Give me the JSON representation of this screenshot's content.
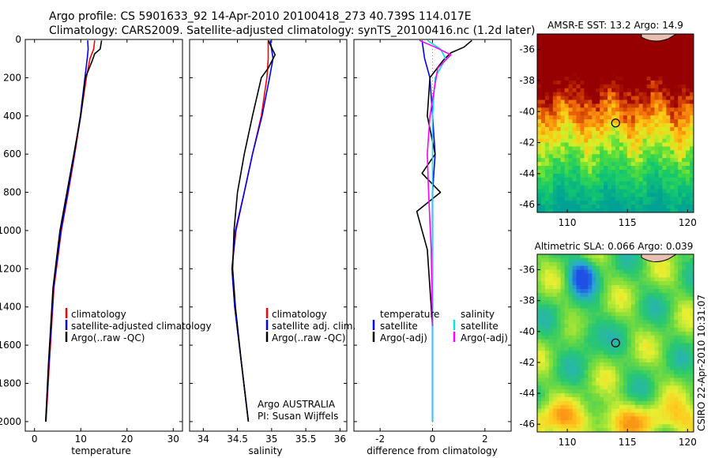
{
  "header": {
    "line1": "Argo profile: CS 5901633_92 14-Apr-2010 20100418_273 40.739S 114.017E",
    "line2": "Climatology: CARS2009. Satellite-adjusted climatology: synTS_20100416.nc (1.2d later)"
  },
  "footer_stamp": "CSIRO 22-Apr-2010 10:31:07",
  "colors": {
    "climatology": "#ff0000",
    "satellite": "#0000ff",
    "argo": "#000000",
    "satellite_diff_salinity": "#00e5e5",
    "argo_diff_salinity": "#ff00ff"
  },
  "chart_data": [
    {
      "type": "line",
      "name": "temperature-profile",
      "xlabel": "temperature",
      "ylabel": "",
      "xlim": [
        -2,
        32
      ],
      "ylim": [
        2050,
        0
      ],
      "xticks": [
        0,
        10,
        20,
        30
      ],
      "yticks": [
        0,
        200,
        400,
        600,
        800,
        1000,
        1200,
        1400,
        1600,
        1800,
        2000
      ],
      "legend": [
        "climatology",
        "satellite-adjusted climatology",
        "Argo(..raw -QC)"
      ],
      "series": [
        {
          "name": "climatology",
          "x": [
            13.0,
            12.8,
            12.0,
            11.2,
            10.0,
            8.7,
            7.3,
            5.8,
            4.2,
            3.2,
            2.5
          ],
          "y": [
            5,
            50,
            100,
            200,
            400,
            600,
            800,
            1000,
            1300,
            1700,
            2000
          ]
        },
        {
          "name": "satellite-adjusted climatology",
          "x": [
            11.5,
            11.6,
            11.4,
            10.9,
            9.9,
            8.6,
            7.2,
            5.7,
            4.1,
            3.1,
            2.4
          ],
          "y": [
            5,
            50,
            100,
            200,
            400,
            600,
            800,
            1000,
            1300,
            1700,
            2000
          ]
        },
        {
          "name": "Argo(..raw -QC)",
          "x": [
            14.5,
            14.2,
            13.0,
            12.5,
            11.0,
            10.0,
            8.5,
            7.0,
            5.5,
            4.0,
            3.0,
            2.4
          ],
          "y": [
            5,
            50,
            75,
            110,
            200,
            400,
            600,
            800,
            1000,
            1300,
            1700,
            2000
          ]
        }
      ]
    },
    {
      "type": "line",
      "name": "salinity-profile",
      "xlabel": "salinity",
      "ylabel": "",
      "xlim": [
        33.8,
        36.1
      ],
      "ylim": [
        2050,
        0
      ],
      "xticks": [
        34,
        34.5,
        35,
        35.5,
        36
      ],
      "legend": [
        "climatology",
        "satellite adj. clim.",
        "Argo(..raw -QC)"
      ],
      "annotation": [
        "Argo AUSTRALIA",
        "PI: Susan Wijffels"
      ],
      "series": [
        {
          "name": "climatology",
          "x": [
            34.95,
            34.95,
            34.94,
            34.93,
            34.85,
            34.72,
            34.6,
            34.48,
            34.42,
            34.46,
            34.56,
            34.66
          ],
          "y": [
            5,
            100,
            160,
            200,
            400,
            600,
            800,
            1000,
            1200,
            1400,
            1700,
            2000
          ]
        },
        {
          "name": "satellite adj. clim.",
          "x": [
            34.98,
            35.0,
            35.02,
            34.97,
            34.86,
            34.72,
            34.6,
            34.47,
            34.42,
            34.46,
            34.56,
            34.66
          ],
          "y": [
            5,
            50,
            100,
            200,
            400,
            600,
            800,
            1000,
            1200,
            1400,
            1700,
            2000
          ]
        },
        {
          "name": "Argo(..raw -QC)",
          "x": [
            34.95,
            35.05,
            34.95,
            34.85,
            34.72,
            34.6,
            34.5,
            34.45,
            34.43,
            34.47,
            34.56,
            34.66
          ],
          "y": [
            5,
            80,
            150,
            200,
            400,
            600,
            800,
            1000,
            1200,
            1400,
            1700,
            2000
          ]
        }
      ]
    },
    {
      "type": "line",
      "name": "difference-profile",
      "xlabel": "difference from climatology",
      "ylabel": "",
      "xlim": [
        -3.0,
        3.0
      ],
      "ylim": [
        2050,
        0
      ],
      "xticks": [
        -2,
        0,
        2
      ],
      "legend_temperature": [
        "temperature",
        "satellite",
        "Argo(-adj)"
      ],
      "legend_salinity": [
        "salinity",
        "satellite",
        "Argo(-adj)"
      ],
      "series": [
        {
          "name": "temperature satellite",
          "x": [
            -0.4,
            -0.3,
            -0.1,
            0.0,
            0.1,
            0.0,
            0.0,
            0.0,
            0.0
          ],
          "y": [
            5,
            100,
            200,
            400,
            600,
            800,
            1000,
            1400,
            2000
          ]
        },
        {
          "name": "temperature Argo(-adj)",
          "x": [
            1.5,
            1.2,
            0.7,
            0.4,
            -0.1,
            -0.2,
            0.1,
            -0.4,
            0.3,
            -0.6,
            -0.2,
            0.0
          ],
          "y": [
            5,
            40,
            70,
            110,
            200,
            400,
            600,
            700,
            800,
            900,
            1100,
            1500
          ]
        },
        {
          "name": "salinity satellite",
          "x": [
            -0.2,
            0.3,
            0.5,
            0.1,
            0.0,
            0.0,
            0.0,
            0.0
          ],
          "y": [
            5,
            50,
            100,
            200,
            400,
            800,
            1400,
            2000
          ]
        },
        {
          "name": "salinity Argo(-adj)",
          "x": [
            -0.5,
            0.1,
            0.7,
            0.2,
            -0.1,
            -0.2,
            -0.15,
            -0.05,
            0.0
          ],
          "y": [
            5,
            40,
            80,
            150,
            400,
            600,
            800,
            1100,
            1500
          ]
        }
      ]
    },
    {
      "type": "heatmap",
      "name": "sst-map",
      "title": "AMSR-E SST: 13.2 Argo: 14.9",
      "xlim": [
        107.5,
        120.5
      ],
      "ylim": [
        -46.5,
        -35
      ],
      "xticks": [
        110,
        115,
        120
      ],
      "yticks": [
        -36,
        -38,
        -40,
        -42,
        -44,
        -46
      ],
      "marker": {
        "lon": 114.017,
        "lat": -40.739
      }
    },
    {
      "type": "heatmap",
      "name": "sla-map",
      "title": "Altimetric SLA: 0.066 Argo: 0.039",
      "xlim": [
        107.5,
        120.5
      ],
      "ylim": [
        -46.5,
        -35
      ],
      "xticks": [
        110,
        115,
        120
      ],
      "yticks": [
        -36,
        -38,
        -40,
        -42,
        -44,
        -46
      ],
      "marker": {
        "lon": 114.017,
        "lat": -40.739
      }
    }
  ]
}
